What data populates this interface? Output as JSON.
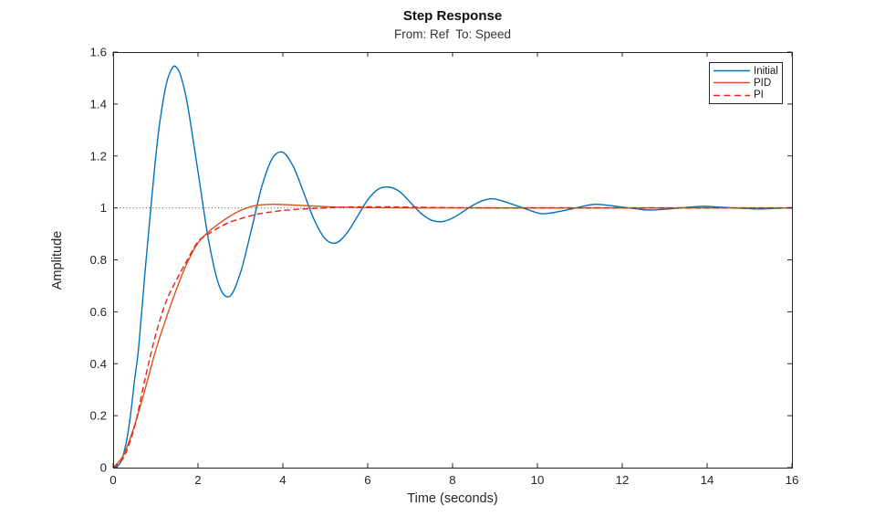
{
  "chart_data": {
    "type": "line",
    "title": "Step Response",
    "subtitle": "From: Ref  To: Speed",
    "xlabel": "Time (seconds)",
    "ylabel": "Amplitude",
    "xlim": [
      0,
      16
    ],
    "ylim": [
      0,
      1.6
    ],
    "xticks": [
      0,
      2,
      4,
      6,
      8,
      10,
      12,
      14,
      16
    ],
    "xtick_labels": [
      "0",
      "2",
      "4",
      "6",
      "8",
      "10",
      "12",
      "14",
      "16"
    ],
    "yticks": [
      0,
      0.2,
      0.4,
      0.6,
      0.8,
      1,
      1.2,
      1.4,
      1.6
    ],
    "ytick_labels": [
      "0",
      "0.2",
      "0.4",
      "0.6",
      "0.8",
      "1",
      "1.2",
      "1.4",
      "1.6"
    ],
    "grid": false,
    "box": true,
    "axis_color": "#262626",
    "legend": {
      "position": "top-right",
      "entries": [
        "Initial",
        "PID",
        "PI"
      ]
    },
    "reference_line": {
      "y": 1,
      "style": "dotted",
      "color": "#595959"
    },
    "series": [
      {
        "name": "Initial",
        "color": "#0072bd",
        "style": "solid",
        "x": [
          0,
          0.1,
          0.2,
          0.3,
          0.4,
          0.5,
          0.6,
          0.75,
          0.9,
          1,
          1.1,
          1.25,
          1.4,
          1.5,
          1.6,
          1.75,
          2,
          2.25,
          2.5,
          2.75,
          3,
          3.25,
          3.5,
          3.75,
          4,
          4.25,
          4.5,
          4.75,
          5,
          5.25,
          5.5,
          5.75,
          6,
          6.25,
          6.5,
          6.75,
          7,
          7.25,
          7.5,
          7.75,
          8,
          8.25,
          8.5,
          8.75,
          9,
          9.5,
          10,
          10.25,
          10.75,
          11.25,
          11.5,
          12,
          12.5,
          12.75,
          13.25,
          13.75,
          14,
          14.5,
          15,
          15.25,
          15.75,
          16
        ],
        "y": [
          0,
          0.005,
          0.03,
          0.09,
          0.19,
          0.33,
          0.46,
          0.75,
          1.02,
          1.19,
          1.33,
          1.475,
          1.54,
          1.54,
          1.505,
          1.4,
          1.14,
          0.875,
          0.7,
          0.66,
          0.75,
          0.91,
          1.08,
          1.19,
          1.214,
          1.158,
          1.055,
          0.95,
          0.881,
          0.865,
          0.901,
          0.965,
          1.031,
          1.072,
          1.08,
          1.063,
          1.022,
          0.98,
          0.953,
          0.947,
          0.961,
          0.986,
          1.012,
          1.03,
          1.034,
          1.009,
          0.981,
          0.979,
          0.994,
          1.012,
          1.013,
          1.003,
          0.993,
          0.992,
          0.998,
          1.005,
          1.006,
          1.001,
          0.997,
          0.996,
          0.999,
          1.001
        ]
      },
      {
        "name": "PID",
        "color": "#d95319",
        "style": "solid",
        "x": [
          0,
          0.25,
          0.5,
          0.75,
          1,
          1.25,
          1.5,
          1.75,
          2,
          2.25,
          2.5,
          2.75,
          3,
          3.25,
          3.5,
          3.75,
          4,
          4.5,
          5,
          5.5,
          6,
          6.5,
          7,
          8,
          9,
          10,
          11,
          12,
          13,
          14,
          15,
          16
        ],
        "y": [
          0,
          0.05,
          0.16,
          0.3,
          0.45,
          0.575,
          0.69,
          0.79,
          0.865,
          0.908,
          0.94,
          0.968,
          0.99,
          1.005,
          1.012,
          1.014,
          1.013,
          1.009,
          1.005,
          1.002,
          1.001,
          1.0005,
          1,
          1,
          1,
          1,
          1,
          1,
          1,
          1,
          1,
          1
        ]
      },
      {
        "name": "PI",
        "color": "#e62120",
        "style": "dashed",
        "x": [
          0,
          0.25,
          0.5,
          0.75,
          1,
          1.25,
          1.5,
          1.75,
          2,
          2.25,
          2.5,
          2.75,
          3,
          3.25,
          3.5,
          4,
          4.5,
          5,
          5.5,
          6,
          6.5,
          7,
          8,
          9,
          10,
          11,
          12,
          13,
          14,
          15,
          16
        ],
        "y": [
          0,
          0.04,
          0.155,
          0.34,
          0.51,
          0.64,
          0.725,
          0.8,
          0.87,
          0.9,
          0.925,
          0.945,
          0.958,
          0.97,
          0.979,
          0.99,
          0.996,
          1.0,
          1.003,
          1.004,
          1.004,
          1.003,
          1.001,
          1,
          1,
          1,
          1,
          1,
          1,
          1,
          1
        ]
      }
    ]
  }
}
